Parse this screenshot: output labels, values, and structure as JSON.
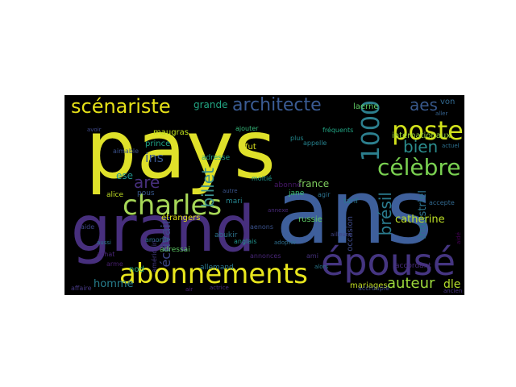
{
  "wordcloud": {
    "background": "#000000",
    "words": [
      {
        "text": "pays",
        "color": "#dfe12a",
        "weight": 10
      },
      {
        "text": "ans",
        "color": "#3e5f9b",
        "weight": 10
      },
      {
        "text": "grand",
        "color": "#472f7d",
        "weight": 9
      },
      {
        "text": "épousé",
        "color": "#453581",
        "weight": 6
      },
      {
        "text": "abonnements",
        "color": "#e8e61d",
        "weight": 5
      },
      {
        "text": "charles",
        "color": "#a7d857",
        "weight": 5
      },
      {
        "text": "scénariste",
        "color": "#e5e018",
        "weight": 4
      },
      {
        "text": "architecte",
        "color": "#3a5b93",
        "weight": 4
      },
      {
        "text": "poste",
        "color": "#d2e21b",
        "weight": 4
      },
      {
        "text": "1000",
        "color": "#2c7f8e",
        "weight": 4
      },
      {
        "text": "célèbre",
        "color": "#7ad151",
        "weight": 4
      },
      {
        "text": "bien",
        "color": "#2b8c8d",
        "weight": 3
      },
      {
        "text": "aes",
        "color": "#38588c",
        "weight": 3
      },
      {
        "text": "beaucoup",
        "color": "#22a884",
        "weight": 3
      },
      {
        "text": "billet",
        "color": "#3b8f8c",
        "weight": 3
      },
      {
        "text": "brésil",
        "color": "#2a7b8e",
        "weight": 3
      },
      {
        "text": "auteur",
        "color": "#9dd93b",
        "weight": 3
      },
      {
        "text": "dle",
        "color": "#b5de2b",
        "weight": 2
      },
      {
        "text": "homme",
        "color": "#277f8e",
        "weight": 2
      },
      {
        "text": "industriel",
        "color": "#2c728e",
        "weight": 2
      },
      {
        "text": "catherine",
        "color": "#bddf26",
        "weight": 2
      },
      {
        "text": "france",
        "color": "#7fcf5f",
        "weight": 2
      },
      {
        "text": "are",
        "color": "#472f7d",
        "weight": 3
      },
      {
        "text": "ins",
        "color": "#39568c",
        "weight": 2
      },
      {
        "text": "grande",
        "color": "#22a784",
        "weight": 2
      },
      {
        "text": "ese",
        "color": "#21918c",
        "weight": 2
      },
      {
        "text": "écrivain",
        "color": "#3e4989",
        "weight": 2
      },
      {
        "text": "internationaux",
        "color": "#a0da39",
        "weight": 1
      },
      {
        "text": "étrangers",
        "color": "#e0e21c",
        "weight": 1
      },
      {
        "text": "fut",
        "color": "#dbe21d",
        "weight": 1
      },
      {
        "text": "russie",
        "color": "#5cc863",
        "weight": 1
      },
      {
        "text": "mariages",
        "color": "#c2df23",
        "weight": 1
      },
      {
        "text": "occasion",
        "color": "#3e4a89",
        "weight": 1
      },
      {
        "text": "abonné",
        "color": "#48186a",
        "weight": 1
      },
      {
        "text": "accordant",
        "color": "#472a7a",
        "weight": 1
      },
      {
        "text": "von",
        "color": "#31688e",
        "weight": 1
      },
      {
        "text": "laerne",
        "color": "#5ec962",
        "weight": 1
      },
      {
        "text": "allemand",
        "color": "#2a778e",
        "weight": 1
      },
      {
        "text": "mari",
        "color": "#25848e",
        "weight": 1
      },
      {
        "text": "jane",
        "color": "#3dbc74",
        "weight": 1
      },
      {
        "text": "tarif",
        "color": "#2a788e",
        "weight": 1
      },
      {
        "text": "nod",
        "color": "#29af7f",
        "weight": 1
      },
      {
        "text": "prince",
        "color": "#20a386",
        "weight": 1
      },
      {
        "text": "maugras",
        "color": "#bfe01c",
        "weight": 1
      },
      {
        "text": "adresse",
        "color": "#1fa188",
        "weight": 1
      },
      {
        "text": "adressai",
        "color": "#5dc863",
        "weight": 1
      },
      {
        "text": "abukir",
        "color": "#2c738e",
        "weight": 1
      },
      {
        "text": "alice",
        "color": "#c0df25",
        "weight": 1
      },
      {
        "text": "pous",
        "color": "#38598c",
        "weight": 1
      },
      {
        "text": "amortir",
        "color": "#2f6c8e",
        "weight": 1
      },
      {
        "text": "aenons",
        "color": "#3b528b",
        "weight": 1
      },
      {
        "text": "accepte",
        "color": "#31688e",
        "weight": 1
      },
      {
        "text": "plus",
        "color": "#23898e",
        "weight": 1
      },
      {
        "text": "agir",
        "color": "#2c728e",
        "weight": 1
      },
      {
        "text": "fréquents",
        "color": "#22a785",
        "weight": 1
      },
      {
        "text": "arme",
        "color": "#481f70",
        "weight": 1
      },
      {
        "text": "aimable",
        "color": "#3b528b",
        "weight": 1
      },
      {
        "text": "annonces",
        "color": "#482677",
        "weight": 1
      },
      {
        "text": "ajouter",
        "color": "#35b779",
        "weight": 1
      },
      {
        "text": "anglais",
        "color": "#21918c",
        "weight": 1
      },
      {
        "text": "américain",
        "color": "#443983",
        "weight": 1
      },
      {
        "text": "accroupie",
        "color": "#3e4989",
        "weight": 1
      },
      {
        "text": "appelle",
        "color": "#26828e",
        "weight": 1
      },
      {
        "text": "affaire",
        "color": "#453781",
        "weight": 1
      },
      {
        "text": "achat",
        "color": "#482575",
        "weight": 1
      },
      {
        "text": "ami",
        "color": "#46317e",
        "weight": 1
      },
      {
        "text": "aide",
        "color": "#3f4788",
        "weight": 1
      },
      {
        "text": "moitié",
        "color": "#1f988b",
        "weight": 1
      },
      {
        "text": "aidé",
        "color": "#440154",
        "weight": 1
      },
      {
        "text": "air",
        "color": "#482173",
        "weight": 1
      },
      {
        "text": "actuel",
        "color": "#2d708e",
        "weight": 1
      },
      {
        "text": "ailleurs",
        "color": "#414487",
        "weight": 1
      },
      {
        "text": "alors",
        "color": "#2a788e",
        "weight": 1
      },
      {
        "text": "annexe",
        "color": "#482979",
        "weight": 1
      },
      {
        "text": "adopter",
        "color": "#2e6e8e",
        "weight": 1
      },
      {
        "text": "actrice",
        "color": "#472d7b",
        "weight": 1
      },
      {
        "text": "avoir",
        "color": "#3f4889",
        "weight": 1
      },
      {
        "text": "aussi",
        "color": "#2b758e",
        "weight": 1
      },
      {
        "text": "aller",
        "color": "#34618d",
        "weight": 1
      },
      {
        "text": "ancien",
        "color": "#46337f",
        "weight": 1
      },
      {
        "text": "autre",
        "color": "#3a548c",
        "weight": 1
      }
    ]
  }
}
